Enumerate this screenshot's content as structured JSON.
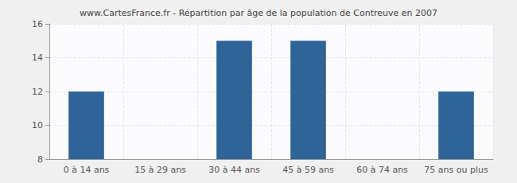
{
  "chart_data": {
    "type": "bar",
    "title": "www.CartesFrance.fr - Répartition par âge de la population de Contreuve en 2007",
    "categories": [
      "0 à 14 ans",
      "15 à 29 ans",
      "30 à 44 ans",
      "45 à 59 ans",
      "60 à 74 ans",
      "75 ans ou plus"
    ],
    "values": [
      12,
      8,
      15,
      15,
      8,
      12
    ],
    "color": "#2e6498",
    "ylim": [
      8,
      16
    ],
    "yticks": [
      8,
      10,
      12,
      14,
      16
    ],
    "grid": true
  }
}
